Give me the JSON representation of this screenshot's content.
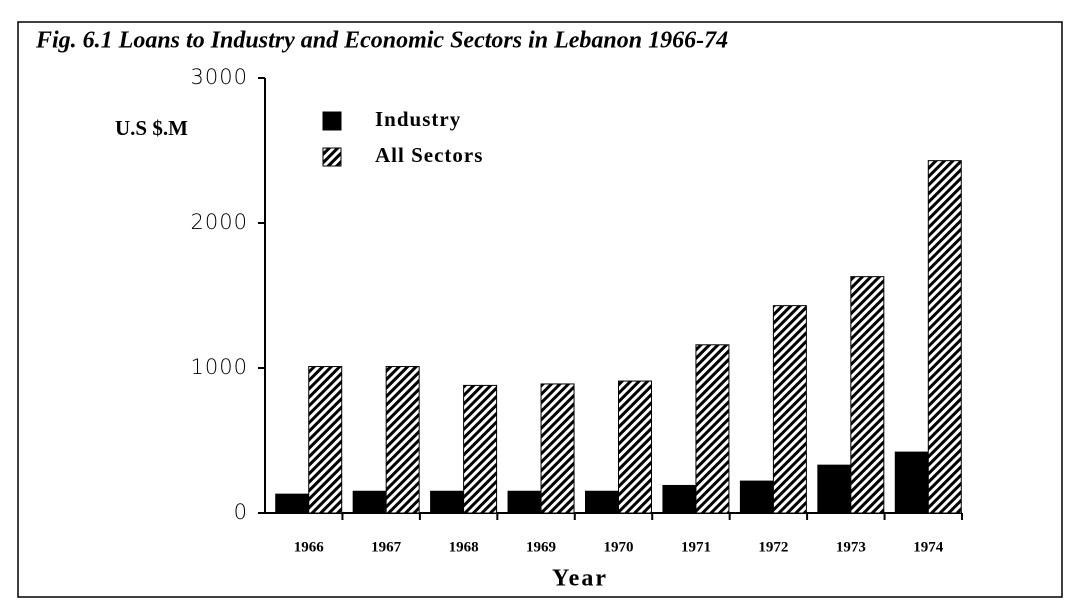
{
  "chart_data": {
    "type": "bar",
    "title": "Fig. 6.1 Loans to Industry and Economic Sectors in Lebanon 1966-74",
    "y_label": "U.S $.M",
    "x_label": "Year",
    "categories": [
      "1966",
      "1967",
      "1968",
      "1969",
      "1970",
      "1971",
      "1972",
      "1973",
      "1974"
    ],
    "series": [
      {
        "name": "Industry",
        "color": "#000000",
        "hatch": false,
        "values": [
          130,
          150,
          150,
          150,
          150,
          190,
          220,
          330,
          420
        ]
      },
      {
        "name": "All Sectors",
        "color": "#000000",
        "hatch": true,
        "values": [
          1010,
          1010,
          880,
          890,
          910,
          1160,
          1430,
          1630,
          2430
        ]
      }
    ],
    "ylim": [
      0,
      3000
    ],
    "yticks": [
      0,
      1000,
      2000,
      3000
    ],
    "grid": false,
    "legend": "upper left"
  }
}
